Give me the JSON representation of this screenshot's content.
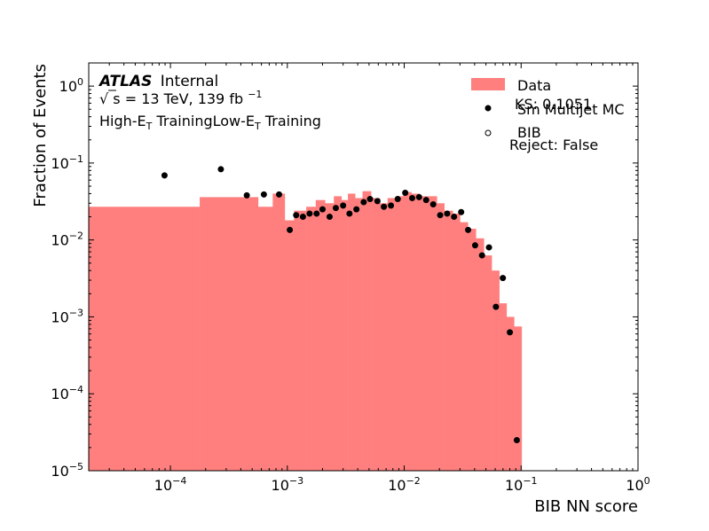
{
  "chart_data": {
    "type": "histogram",
    "xlabel": "BIB NN score",
    "ylabel": "Fraction of Events",
    "xscale": "log",
    "yscale": "log",
    "xlim": [
      2e-05,
      1.0
    ],
    "ylim": [
      1e-05,
      2.0
    ],
    "x_ticks": [
      {
        "value": 0.0001,
        "base": "10",
        "exp": "−4"
      },
      {
        "value": 0.001,
        "base": "10",
        "exp": "−3"
      },
      {
        "value": 0.01,
        "base": "10",
        "exp": "−2"
      },
      {
        "value": 0.1,
        "base": "10",
        "exp": "−1"
      },
      {
        "value": 1,
        "base": "10",
        "exp": "0"
      }
    ],
    "y_ticks": [
      {
        "value": 1e-05,
        "base": "10",
        "exp": "−5"
      },
      {
        "value": 0.0001,
        "base": "10",
        "exp": "−4"
      },
      {
        "value": 0.001,
        "base": "10",
        "exp": "−3"
      },
      {
        "value": 0.01,
        "base": "10",
        "exp": "−2"
      },
      {
        "value": 0.1,
        "base": "10",
        "exp": "−1"
      },
      {
        "value": 1,
        "base": "10",
        "exp": "0"
      }
    ],
    "annotations": {
      "atlas": "ATLAS",
      "internal": "Internal",
      "sqrt_sym": "√",
      "s_var": "s",
      "energy": " =  13 TeV, 139 fb",
      "energy_exp": "−1",
      "training_1": "High-E",
      "training_sub": "T",
      "training_2": " TrainingLow-E",
      "training_sub2": "T",
      "training_3": " Training",
      "ks": "KS: 0.1051",
      "reject": "Reject: False"
    },
    "legend": {
      "position": "top-right",
      "entries": [
        {
          "label": "Data",
          "marker": "filled-box",
          "color": "#ff7f7f"
        },
        {
          "label": "Sm Multijet MC",
          "marker": "filled-circle",
          "color": "#000000"
        },
        {
          "label": "BIB",
          "marker": "open-circle",
          "color": "#000000"
        }
      ]
    },
    "series": [
      {
        "name": "Data",
        "kind": "histogram",
        "color": "#ff7f7f",
        "bins": [
          {
            "x0": 2e-05,
            "x1": 0.000178,
            "y": 0.027
          },
          {
            "x0": 0.000178,
            "x1": 0.000562,
            "y": 0.036
          },
          {
            "x0": 0.000562,
            "x1": 0.00075,
            "y": 0.027
          },
          {
            "x0": 0.00075,
            "x1": 0.00095,
            "y": 0.04
          },
          {
            "x0": 0.00095,
            "x1": 0.00114,
            "y": 0.018
          },
          {
            "x0": 0.00114,
            "x1": 0.00145,
            "y": 0.024
          },
          {
            "x0": 0.00145,
            "x1": 0.00175,
            "y": 0.027
          },
          {
            "x0": 0.00175,
            "x1": 0.0021,
            "y": 0.033
          },
          {
            "x0": 0.0021,
            "x1": 0.0025,
            "y": 0.03
          },
          {
            "x0": 0.0025,
            "x1": 0.0029,
            "y": 0.037
          },
          {
            "x0": 0.0029,
            "x1": 0.0033,
            "y": 0.033
          },
          {
            "x0": 0.0033,
            "x1": 0.0038,
            "y": 0.04
          },
          {
            "x0": 0.0038,
            "x1": 0.0044,
            "y": 0.035
          },
          {
            "x0": 0.0044,
            "x1": 0.0052,
            "y": 0.043
          },
          {
            "x0": 0.0052,
            "x1": 0.0062,
            "y": 0.035
          },
          {
            "x0": 0.0062,
            "x1": 0.0072,
            "y": 0.03
          },
          {
            "x0": 0.0072,
            "x1": 0.0084,
            "y": 0.035
          },
          {
            "x0": 0.0084,
            "x1": 0.0098,
            "y": 0.037
          },
          {
            "x0": 0.0098,
            "x1": 0.0115,
            "y": 0.042
          },
          {
            "x0": 0.0115,
            "x1": 0.0135,
            "y": 0.04
          },
          {
            "x0": 0.0135,
            "x1": 0.016,
            "y": 0.037
          },
          {
            "x0": 0.016,
            "x1": 0.019,
            "y": 0.037
          },
          {
            "x0": 0.019,
            "x1": 0.022,
            "y": 0.03
          },
          {
            "x0": 0.022,
            "x1": 0.026,
            "y": 0.024
          },
          {
            "x0": 0.026,
            "x1": 0.03,
            "y": 0.022
          },
          {
            "x0": 0.03,
            "x1": 0.035,
            "y": 0.017
          },
          {
            "x0": 0.035,
            "x1": 0.041,
            "y": 0.014
          },
          {
            "x0": 0.041,
            "x1": 0.048,
            "y": 0.0105
          },
          {
            "x0": 0.048,
            "x1": 0.056,
            "y": 0.0063
          },
          {
            "x0": 0.056,
            "x1": 0.065,
            "y": 0.004
          },
          {
            "x0": 0.065,
            "x1": 0.075,
            "y": 0.0015
          },
          {
            "x0": 0.075,
            "x1": 0.087,
            "y": 0.001
          },
          {
            "x0": 0.087,
            "x1": 0.101,
            "y": 0.00075
          }
        ]
      },
      {
        "name": "Sm Multijet MC",
        "kind": "scatter",
        "marker": "filled-circle",
        "color": "#000000",
        "points": [
          {
            "x": 8.9e-05,
            "y": 0.069
          },
          {
            "x": 0.00027,
            "y": 0.083
          },
          {
            "x": 0.00045,
            "y": 0.038
          },
          {
            "x": 0.00063,
            "y": 0.039
          },
          {
            "x": 0.00085,
            "y": 0.039
          },
          {
            "x": 0.00105,
            "y": 0.0135
          },
          {
            "x": 0.00119,
            "y": 0.021
          },
          {
            "x": 0.00136,
            "y": 0.02
          },
          {
            "x": 0.00155,
            "y": 0.022
          },
          {
            "x": 0.00178,
            "y": 0.022
          },
          {
            "x": 0.002,
            "y": 0.025
          },
          {
            "x": 0.0023,
            "y": 0.02
          },
          {
            "x": 0.0026,
            "y": 0.026
          },
          {
            "x": 0.003,
            "y": 0.028
          },
          {
            "x": 0.0034,
            "y": 0.022
          },
          {
            "x": 0.0039,
            "y": 0.025
          },
          {
            "x": 0.0045,
            "y": 0.031
          },
          {
            "x": 0.0051,
            "y": 0.034
          },
          {
            "x": 0.0059,
            "y": 0.032
          },
          {
            "x": 0.0067,
            "y": 0.027
          },
          {
            "x": 0.0077,
            "y": 0.028
          },
          {
            "x": 0.0088,
            "y": 0.034
          },
          {
            "x": 0.0102,
            "y": 0.041
          },
          {
            "x": 0.0117,
            "y": 0.035
          },
          {
            "x": 0.0134,
            "y": 0.036
          },
          {
            "x": 0.0154,
            "y": 0.033
          },
          {
            "x": 0.0177,
            "y": 0.029
          },
          {
            "x": 0.0203,
            "y": 0.021
          },
          {
            "x": 0.0233,
            "y": 0.022
          },
          {
            "x": 0.0267,
            "y": 0.02
          },
          {
            "x": 0.0307,
            "y": 0.023
          },
          {
            "x": 0.0352,
            "y": 0.0135
          },
          {
            "x": 0.0404,
            "y": 0.0085
          },
          {
            "x": 0.0463,
            "y": 0.0063
          },
          {
            "x": 0.0531,
            "y": 0.008
          },
          {
            "x": 0.0609,
            "y": 0.00135
          },
          {
            "x": 0.0698,
            "y": 0.0032
          },
          {
            "x": 0.0801,
            "y": 0.00063
          },
          {
            "x": 0.0919,
            "y": 2.5e-05
          }
        ]
      }
    ]
  }
}
